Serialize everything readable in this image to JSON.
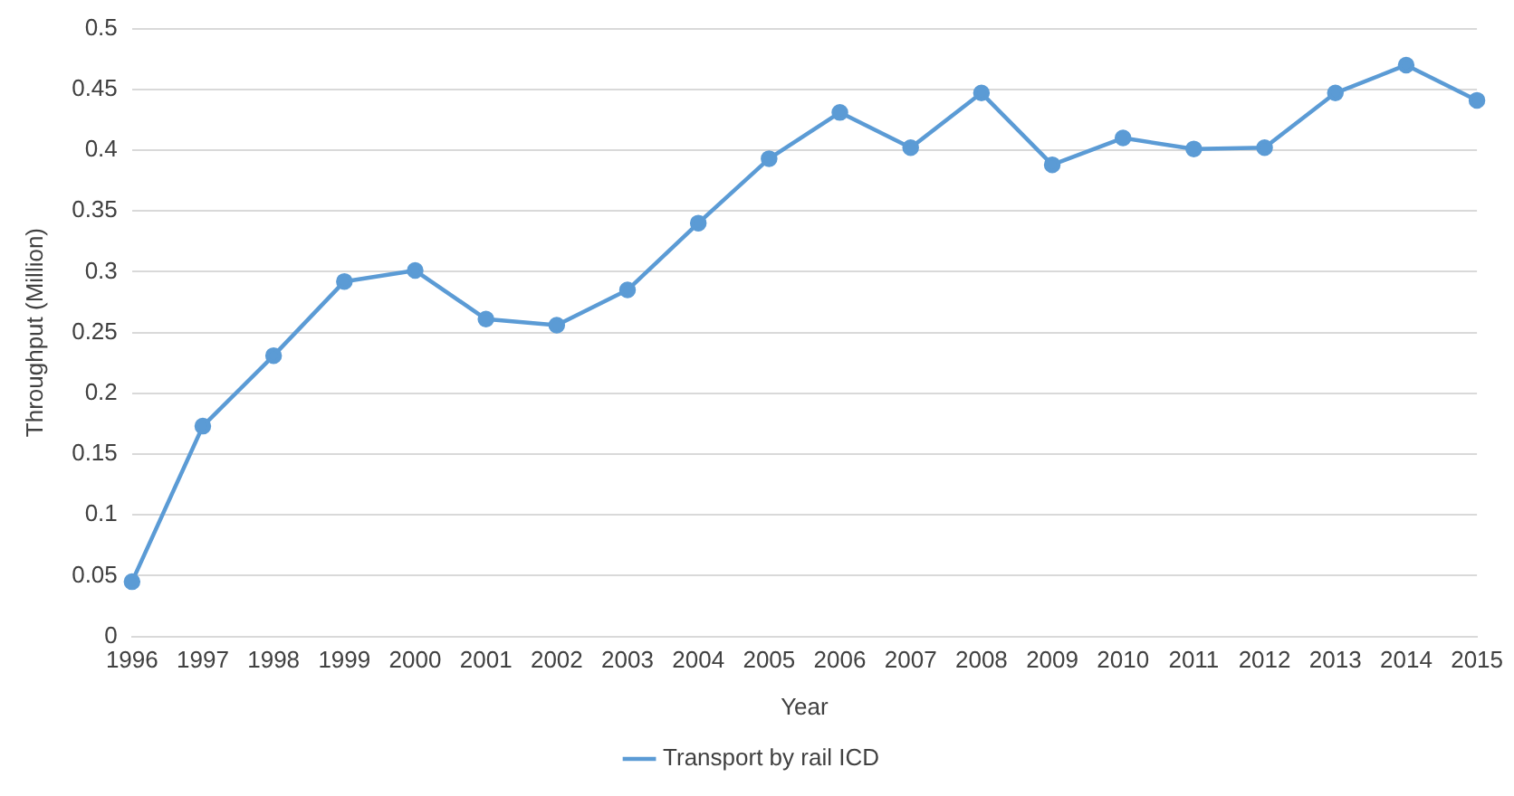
{
  "chart_data": {
    "type": "line",
    "xlabel": "Year",
    "ylabel": "Throughput (Million)",
    "categories": [
      "1996",
      "1997",
      "1998",
      "1999",
      "2000",
      "2001",
      "2002",
      "2003",
      "2004",
      "2005",
      "2006",
      "2007",
      "2008",
      "2009",
      "2010",
      "2011",
      "2012",
      "2013",
      "2014",
      "2015"
    ],
    "series": [
      {
        "name": "Transport by rail ICD",
        "color": "#5b9bd5",
        "values": [
          0.045,
          0.173,
          0.231,
          0.292,
          0.301,
          0.261,
          0.256,
          0.285,
          0.34,
          0.393,
          0.431,
          0.402,
          0.447,
          0.388,
          0.41,
          0.401,
          0.402,
          0.447,
          0.47,
          0.441
        ]
      }
    ],
    "ylim": [
      0,
      0.5
    ],
    "yticks": [
      0,
      0.05,
      0.1,
      0.15,
      0.2,
      0.25,
      0.3,
      0.35,
      0.4,
      0.45,
      0.5
    ],
    "grid": "y",
    "legend": "bottom",
    "marker": "circle",
    "line_style": "solid"
  }
}
